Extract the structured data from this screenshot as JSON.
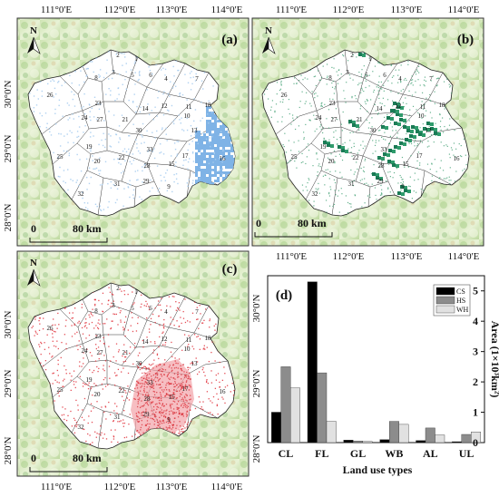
{
  "maps": [
    {
      "label": "(a)",
      "north": "N",
      "scale": {
        "zero": "0",
        "distance": "80 km"
      },
      "top_labels": [
        "111°0'E",
        "112°0'E",
        "113°0'E",
        "114°0'E"
      ],
      "left_labels": [
        "30°0'N",
        "29°0'N",
        "28°0'N"
      ],
      "bottom_labels": [],
      "right_labels": [],
      "overlay": "blue",
      "overlay_color": "#a9cdf0"
    },
    {
      "label": "(b)",
      "north": "N",
      "scale": {
        "zero": "0",
        "distance": "80 km"
      },
      "top_labels": [
        "111°0'E",
        "112°0'E",
        "113°0'E",
        "114°0'E"
      ],
      "left_labels": [],
      "bottom_labels": [
        "111°0'E",
        "112°0'E",
        "113°0'E",
        "114°0'E"
      ],
      "right_labels": [],
      "overlay": "green",
      "overlay_color": "#1a7a55"
    },
    {
      "label": "(c)",
      "north": "N",
      "scale": {
        "zero": "0",
        "distance": "80 km"
      },
      "top_labels": [],
      "left_labels": [
        "30°0'N",
        "29°0'N",
        "28°0'N"
      ],
      "bottom_labels": [
        "111°0'E",
        "112°0'E",
        "113°0'E",
        "114°0'E"
      ],
      "right_labels": [],
      "overlay": "red",
      "overlay_color": "#f2a3a8"
    }
  ],
  "region_numbers": [
    "1",
    "2",
    "3",
    "4",
    "5",
    "6",
    "7",
    "8",
    "9",
    "10",
    "11",
    "12",
    "13",
    "14",
    "15",
    "16",
    "17",
    "18",
    "19",
    "20",
    "21",
    "22",
    "23",
    "24",
    "25",
    "26",
    "27",
    "28",
    "29",
    "30",
    "31",
    "32",
    "33"
  ],
  "panel_d_lat_labels": [
    "30°0'N",
    "29°0'N",
    "28°0'N"
  ],
  "colors": {
    "cs": "#000000",
    "hs": "#8c8c8c",
    "wh": "#e1e1e1",
    "terrain_light": "#dfeeca",
    "terrain_mid": "#bfdca0",
    "terrain_dark": "#8fbf7a"
  },
  "chart_data": {
    "type": "bar",
    "label": "(d)",
    "categories": [
      "CL",
      "FL",
      "GL",
      "WB",
      "AL",
      "UL"
    ],
    "series": [
      {
        "name": "CS",
        "values": [
          1.0,
          5.3,
          0.08,
          0.1,
          0.07,
          0.03
        ]
      },
      {
        "name": "HS",
        "values": [
          2.5,
          2.3,
          0.05,
          0.7,
          0.48,
          0.27
        ]
      },
      {
        "name": "WH",
        "values": [
          1.8,
          0.7,
          0.04,
          0.6,
          0.25,
          0.35
        ]
      }
    ],
    "xlabel": "Land use types",
    "ylabel": "Area (1×10³km²)",
    "ylim": [
      0,
      5.5
    ],
    "yticks": [
      "0",
      "1",
      "2",
      "3",
      "4",
      "5"
    ],
    "legend_position": "top-right",
    "y_axis_side": "right"
  }
}
